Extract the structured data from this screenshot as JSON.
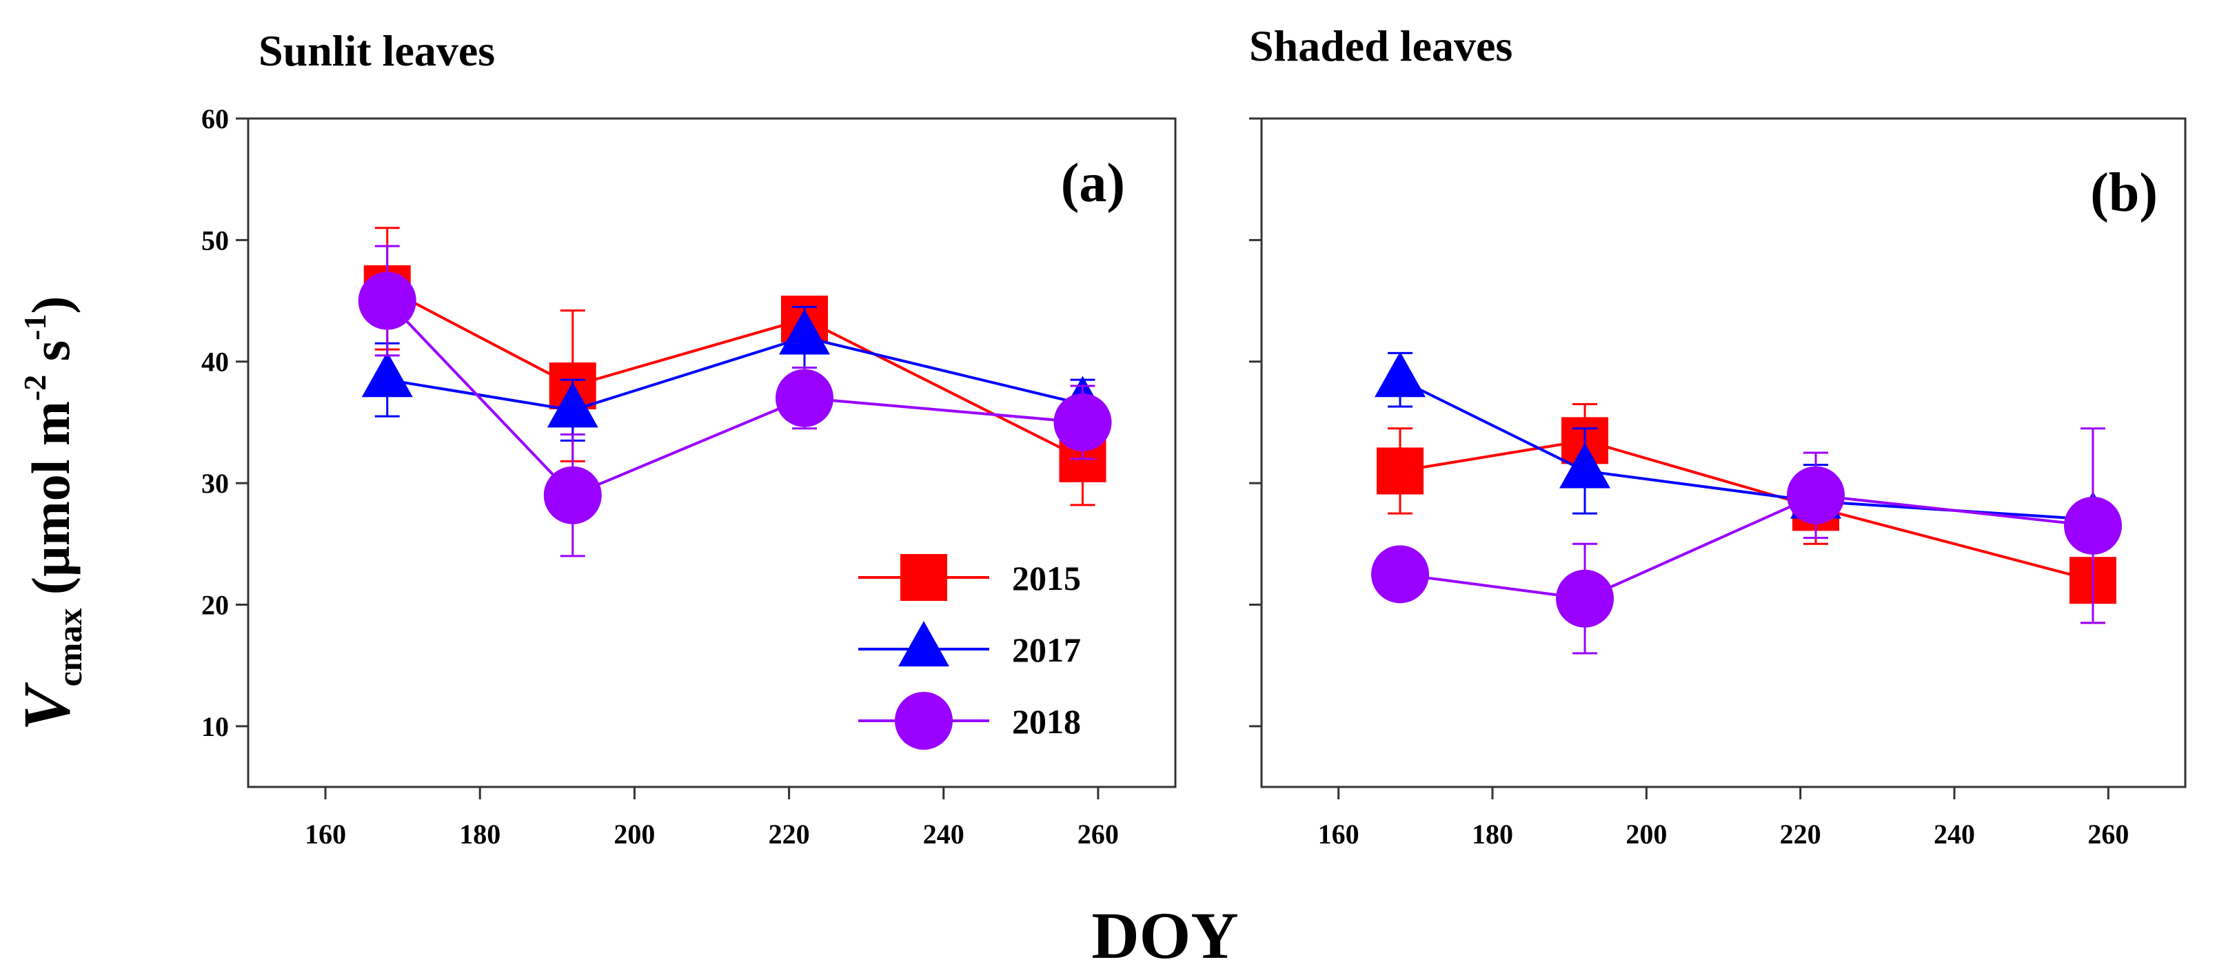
{
  "chart_data": {
    "type": "line",
    "xlabel": "DOY",
    "ylabel": {
      "symbol": "V",
      "subscript": "cmax",
      "unit_prefix": " (µmol m",
      "sup1": "-2",
      "unit_mid": " s",
      "sup2": "-1",
      "unit_suffix": ")"
    },
    "xlim": [
      150,
      270
    ],
    "ylim": [
      5,
      60
    ],
    "xticks": [
      160,
      180,
      200,
      220,
      240,
      260
    ],
    "yticks": [
      10,
      20,
      30,
      40,
      50,
      60
    ],
    "legend": {
      "position": "bottom-right of panel (a)",
      "entries": [
        "2015",
        "2017",
        "2018"
      ]
    },
    "series_styles": [
      {
        "name": "2015",
        "color": "#ff0000",
        "marker": "square"
      },
      {
        "name": "2017",
        "color": "#0000ff",
        "marker": "triangle"
      },
      {
        "name": "2018",
        "color": "#9900ff",
        "marker": "circle"
      }
    ],
    "panels": [
      {
        "title": "Sunlit leaves",
        "label": "(a)",
        "series": [
          {
            "name": "2015",
            "x": [
              168,
              192,
              222,
              258
            ],
            "y": [
              46,
              38,
              43.5,
              32
            ],
            "err": [
              5,
              6.2,
              1.2,
              3.8
            ]
          },
          {
            "name": "2017",
            "x": [
              168,
              192,
              222,
              258
            ],
            "y": [
              38.5,
              36,
              42,
              36.5
            ],
            "err": [
              3,
              2.5,
              2.5,
              2
            ]
          },
          {
            "name": "2018",
            "x": [
              168,
              192,
              222,
              258
            ],
            "y": [
              45,
              29,
              37,
              35
            ],
            "err": [
              4.5,
              5,
              2.5,
              3
            ]
          }
        ]
      },
      {
        "title": "Shaded leaves",
        "label": "(b)",
        "series": [
          {
            "name": "2015",
            "x": [
              168,
              192,
              222,
              258
            ],
            "y": [
              31,
              33.5,
              28,
              22
            ],
            "err": [
              3.5,
              3,
              3,
              3.5
            ]
          },
          {
            "name": "2017",
            "x": [
              168,
              192,
              222,
              258
            ],
            "y": [
              38.5,
              31,
              28.5,
              27
            ],
            "err": [
              2.2,
              3.5,
              3,
              1
            ]
          },
          {
            "name": "2018",
            "x": [
              168,
              192,
              222,
              258
            ],
            "y": [
              22.5,
              20.5,
              29,
              26.5
            ],
            "err": [
              1,
              4.5,
              3.5,
              8
            ]
          }
        ]
      }
    ]
  }
}
